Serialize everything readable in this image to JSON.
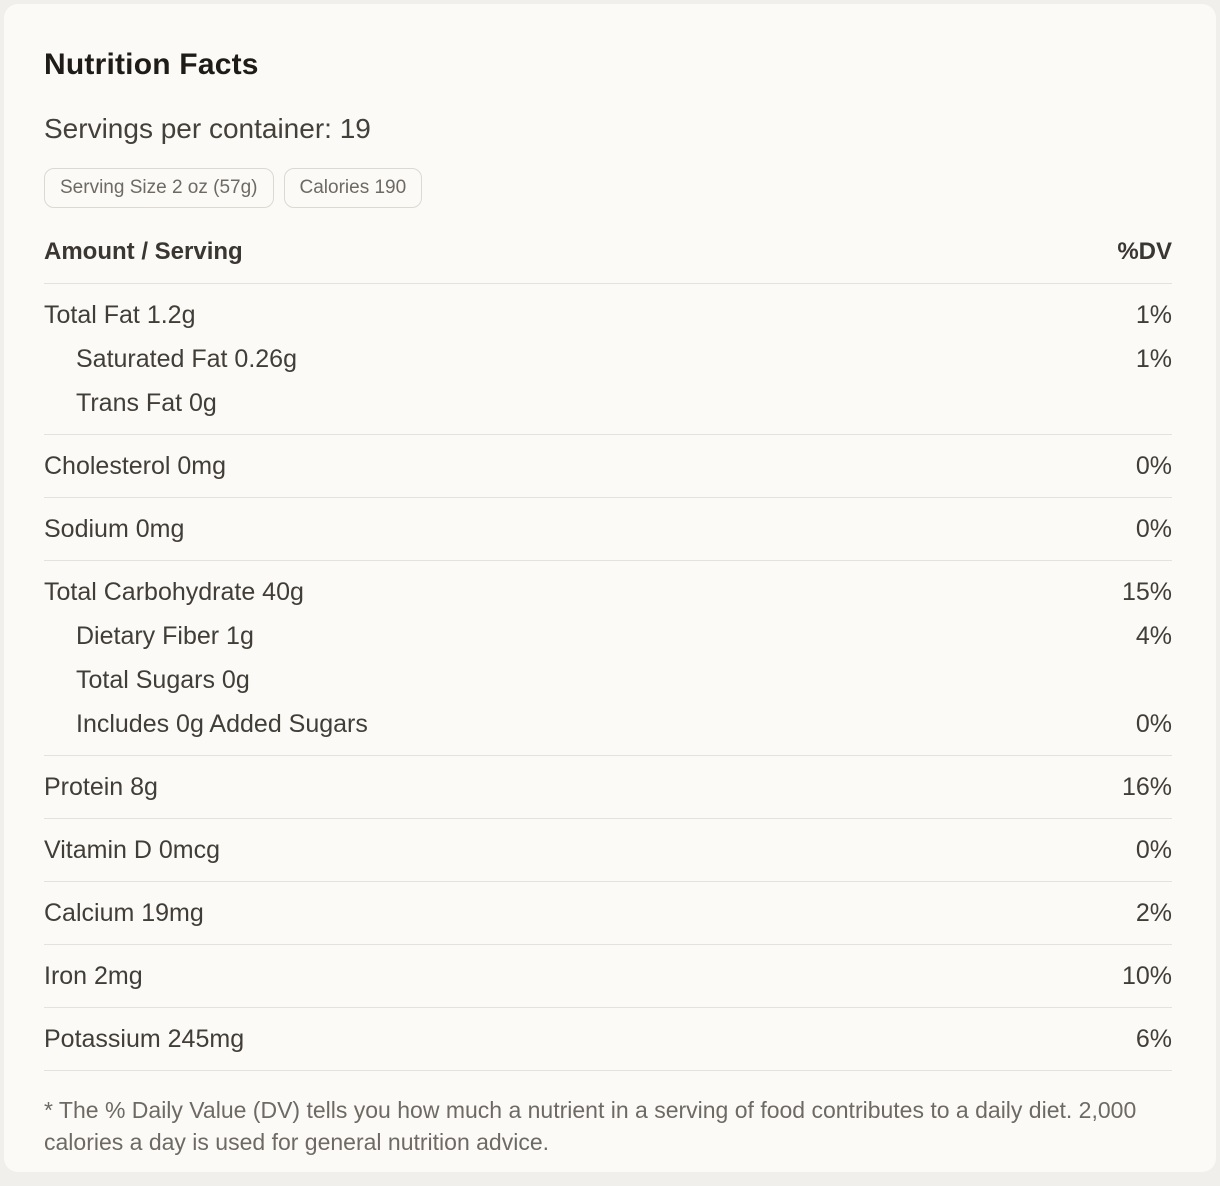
{
  "title": "Nutrition Facts",
  "servings_line": "Servings per container: 19",
  "chips": [
    {
      "label": "Serving Size 2 oz (57g)"
    },
    {
      "label": "Calories 190"
    }
  ],
  "table": {
    "header": {
      "amount_label": "Amount / Serving",
      "dv_label": "%DV"
    },
    "rows": [
      {
        "label": "Total Fat 1.2g",
        "dv": "1%"
      },
      {
        "label": "Saturated Fat 0.26g",
        "dv": "1%"
      },
      {
        "label": "Trans Fat 0g",
        "dv": ""
      },
      {
        "label": "Cholesterol 0mg",
        "dv": "0%"
      },
      {
        "label": "Sodium 0mg",
        "dv": "0%"
      },
      {
        "label": "Total Carbohydrate 40g",
        "dv": "15%"
      },
      {
        "label": "Dietary Fiber 1g",
        "dv": "4%"
      },
      {
        "label": "Total Sugars 0g",
        "dv": ""
      },
      {
        "label": "Includes 0g Added Sugars",
        "dv": "0%"
      },
      {
        "label": "Protein 8g",
        "dv": "16%"
      },
      {
        "label": "Vitamin D 0mcg",
        "dv": "0%"
      },
      {
        "label": "Calcium 19mg",
        "dv": "2%"
      },
      {
        "label": "Iron 2mg",
        "dv": "10%"
      },
      {
        "label": "Potassium 245mg",
        "dv": "6%"
      }
    ]
  },
  "footnote": "* The % Daily Value (DV) tells you how much a nutrient in a serving of food contributes to a daily diet. 2,000 calories a day is used for general nutrition advice.",
  "colors": {
    "page_bg": "#f1efeb",
    "card_bg": "#fbfaf7",
    "divider": "#e5e2dd",
    "title_text": "#1f1c17",
    "row_text": "#413d37",
    "muted_text": "#6e6a63",
    "chip_border": "#dcd9d3"
  }
}
